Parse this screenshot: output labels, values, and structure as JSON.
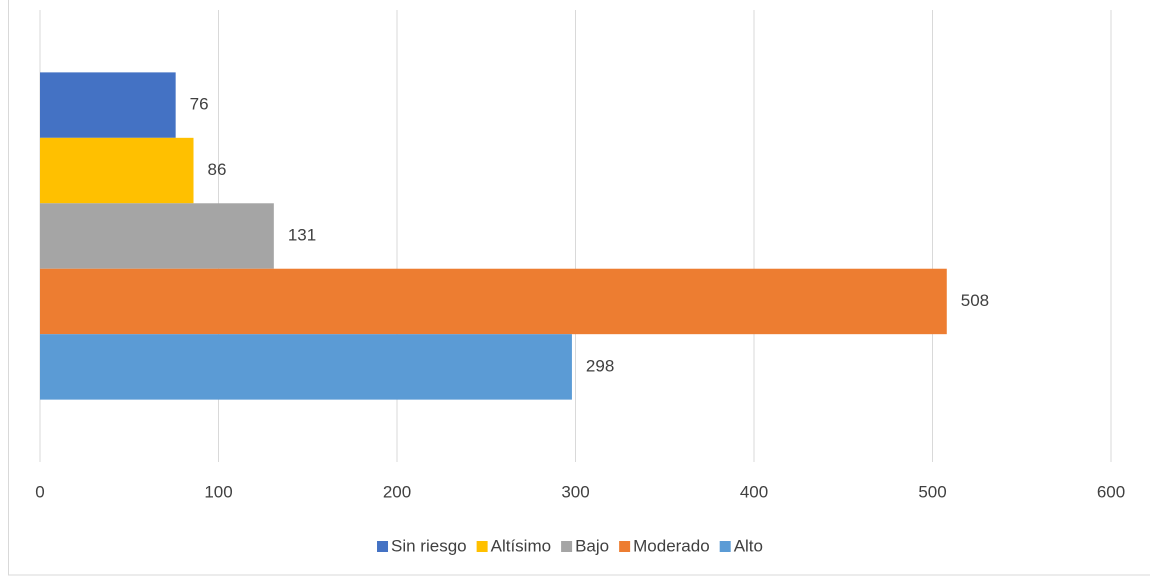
{
  "chart_data": {
    "type": "bar",
    "orientation": "horizontal",
    "categories": [
      null
    ],
    "series": [
      {
        "name": "Sin riesgo",
        "color": "#4472c4",
        "values": [
          76
        ]
      },
      {
        "name": "Altísimo",
        "color": "#ffc000",
        "values": [
          86
        ]
      },
      {
        "name": "Bajo",
        "color": "#a5a5a5",
        "values": [
          131
        ]
      },
      {
        "name": "Moderado",
        "color": "#ed7d31",
        "values": [
          508
        ]
      },
      {
        "name": "Alto",
        "color": "#5b9bd5",
        "values": [
          298
        ]
      }
    ],
    "xlim": [
      0,
      600
    ],
    "xticks": [
      0,
      100,
      200,
      300,
      400,
      500,
      600
    ],
    "grid": true,
    "legend": "bottom"
  }
}
